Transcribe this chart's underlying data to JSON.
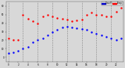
{
  "background_color": "#d8d8d8",
  "plot_bg_color": "#d8d8d8",
  "grid_color": "#888888",
  "temp_color": "#ff0000",
  "dew_color": "#0000ff",
  "legend_temp_color": "#ff0000",
  "legend_dew_color": "#0000cc",
  "legend_bg": "#0000cc",
  "ylim": [
    -5,
    65
  ],
  "ytick_vals": [
    0,
    10,
    20,
    30,
    40,
    50,
    60
  ],
  "xtick_vals": [
    0,
    2,
    4,
    6,
    8,
    10,
    12,
    14,
    16,
    18,
    20,
    22
  ],
  "vgrid_x": [
    0,
    3,
    6,
    9,
    12,
    15,
    18,
    21
  ],
  "hours": [
    0,
    1,
    2,
    3,
    4,
    5,
    6,
    7,
    8,
    9,
    10,
    11,
    12,
    13,
    14,
    15,
    16,
    17,
    18,
    19,
    20,
    21,
    22,
    23
  ],
  "temp": [
    22,
    20,
    20,
    50,
    45,
    42,
    40,
    48,
    50,
    48,
    46,
    45,
    44,
    42,
    43,
    44,
    50,
    52,
    50,
    50,
    48,
    48,
    53,
    58
  ],
  "dew": [
    5,
    6,
    8,
    10,
    12,
    18,
    20,
    22,
    26,
    30,
    32,
    35,
    36,
    35,
    34,
    33,
    32,
    30,
    28,
    26,
    24,
    22,
    20,
    22
  ]
}
